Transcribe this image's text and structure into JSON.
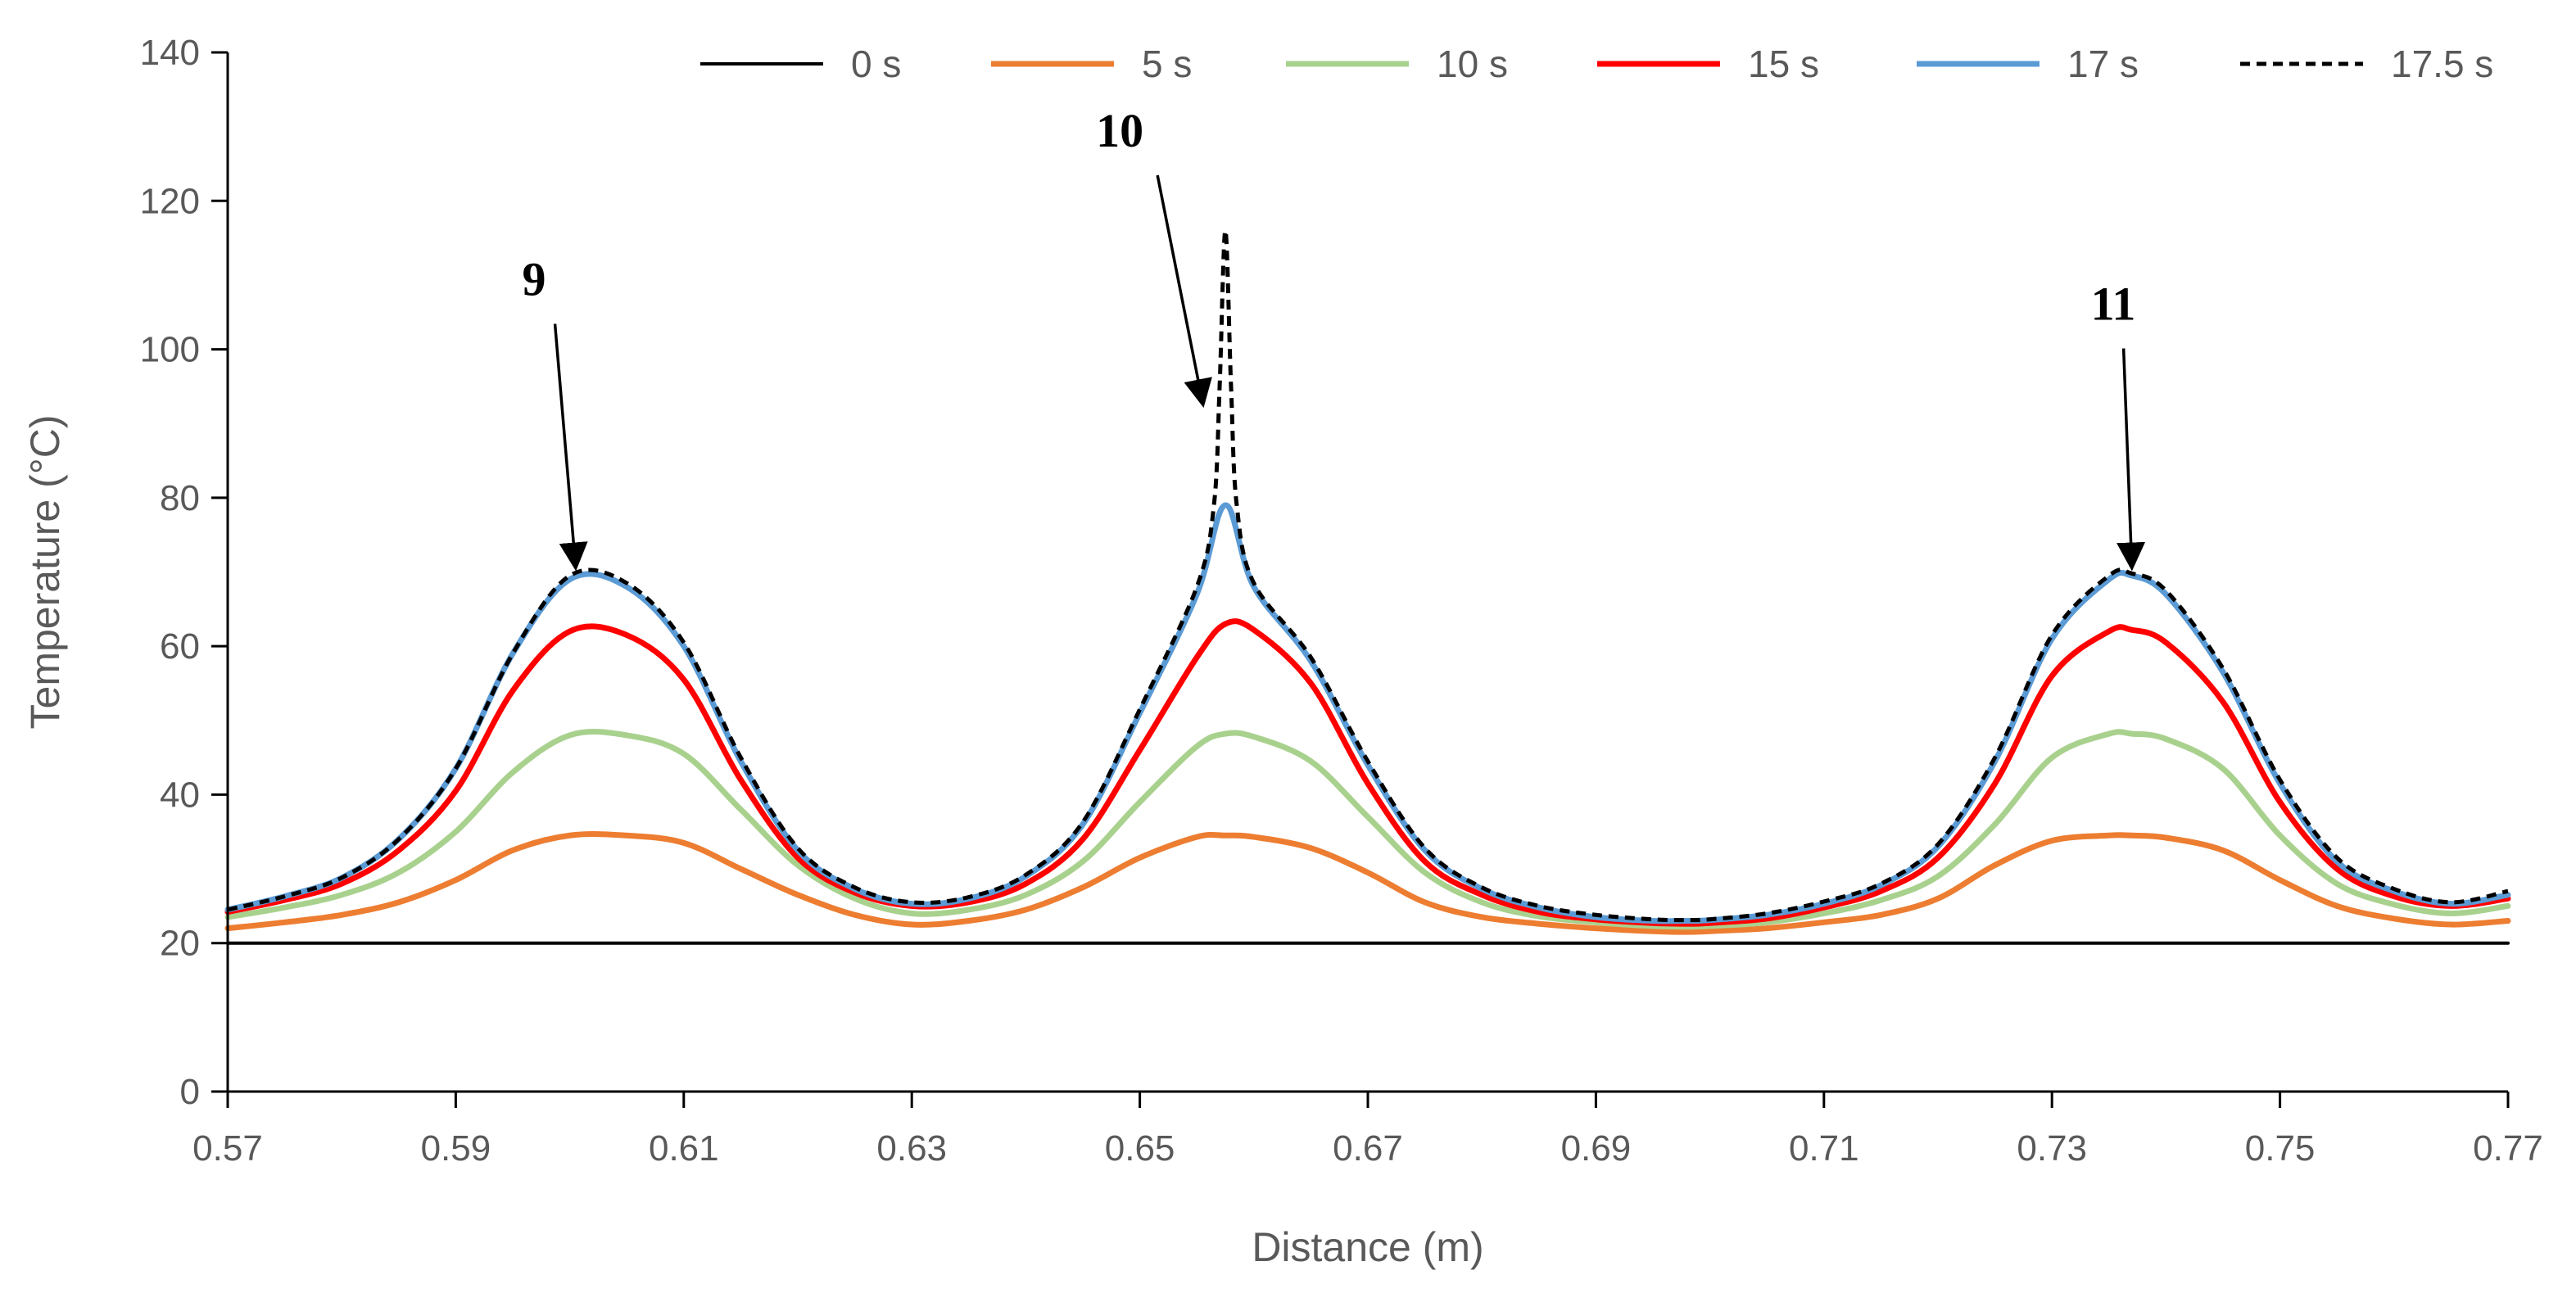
{
  "chart_data": {
    "type": "line",
    "title": "",
    "xlabel": "Distance (m)",
    "ylabel": "Temperature (°C)",
    "xlim": [
      0.57,
      0.77
    ],
    "ylim": [
      0,
      140
    ],
    "x_ticks": [
      0.57,
      0.59,
      0.61,
      0.63,
      0.65,
      0.67,
      0.69,
      0.71,
      0.73,
      0.75,
      0.77
    ],
    "x_tick_labels": [
      "0.57",
      "0.59",
      "0.61",
      "0.63",
      "0.65",
      "0.67",
      "0.69",
      "0.71",
      "0.73",
      "0.75",
      "0.77"
    ],
    "y_ticks": [
      0,
      20,
      40,
      60,
      80,
      100,
      120,
      140
    ],
    "y_tick_labels": [
      "0",
      "20",
      "40",
      "60",
      "80",
      "100",
      "120",
      "140"
    ],
    "grid": false,
    "legend_position": "top",
    "series": [
      {
        "name": "0 s",
        "color": "#000000",
        "dashed": false,
        "x": [
          0.57,
          0.77
        ],
        "y": [
          20,
          20
        ]
      },
      {
        "name": "5 s",
        "color": "#ED7D31",
        "dashed": false,
        "x": [
          0.57,
          0.575,
          0.58,
          0.585,
          0.59,
          0.595,
          0.6,
          0.605,
          0.61,
          0.615,
          0.62,
          0.625,
          0.63,
          0.635,
          0.64,
          0.645,
          0.65,
          0.655,
          0.6575,
          0.66,
          0.665,
          0.67,
          0.675,
          0.68,
          0.685,
          0.69,
          0.695,
          0.698,
          0.7,
          0.705,
          0.71,
          0.715,
          0.72,
          0.725,
          0.73,
          0.735,
          0.737,
          0.74,
          0.745,
          0.75,
          0.755,
          0.76,
          0.765,
          0.77
        ],
        "y": [
          22,
          22.8,
          23.8,
          25.5,
          28.5,
          32.5,
          34.5,
          34.5,
          33.5,
          30,
          26.5,
          23.8,
          22.5,
          23,
          24.5,
          27.5,
          31.5,
          34.3,
          34.5,
          34.3,
          32.8,
          29.5,
          25.5,
          23.5,
          22.6,
          22,
          21.6,
          21.5,
          21.6,
          22,
          22.8,
          23.8,
          26,
          30.5,
          33.8,
          34.5,
          34.5,
          34.2,
          32.5,
          28.5,
          25,
          23.3,
          22.5,
          23
        ]
      },
      {
        "name": "10 s",
        "color": "#A9D18E",
        "dashed": false,
        "x": [
          0.57,
          0.575,
          0.58,
          0.585,
          0.59,
          0.595,
          0.6,
          0.605,
          0.61,
          0.615,
          0.62,
          0.625,
          0.63,
          0.635,
          0.64,
          0.645,
          0.65,
          0.655,
          0.6575,
          0.66,
          0.665,
          0.67,
          0.675,
          0.68,
          0.685,
          0.69,
          0.695,
          0.698,
          0.7,
          0.705,
          0.71,
          0.715,
          0.72,
          0.725,
          0.73,
          0.735,
          0.737,
          0.74,
          0.745,
          0.75,
          0.755,
          0.76,
          0.765,
          0.77
        ],
        "y": [
          23.5,
          24.8,
          26.5,
          29.5,
          35,
          43,
          48,
          48,
          45.5,
          38,
          30.5,
          26,
          24,
          24.5,
          26.5,
          31,
          39,
          46.5,
          48.2,
          47.8,
          44.5,
          37,
          29.5,
          25.5,
          23.6,
          22.8,
          22.3,
          22.2,
          22.3,
          22.8,
          24,
          25.8,
          29,
          36,
          45,
          48.2,
          48.2,
          47.5,
          43.5,
          34.5,
          28,
          25.2,
          24,
          25
        ]
      },
      {
        "name": "15 s",
        "color": "#FF0000",
        "dashed": false,
        "x": [
          0.57,
          0.575,
          0.58,
          0.585,
          0.59,
          0.595,
          0.6,
          0.605,
          0.61,
          0.615,
          0.62,
          0.625,
          0.63,
          0.635,
          0.64,
          0.645,
          0.65,
          0.655,
          0.6575,
          0.66,
          0.665,
          0.67,
          0.675,
          0.68,
          0.685,
          0.69,
          0.695,
          0.698,
          0.7,
          0.705,
          0.71,
          0.715,
          0.72,
          0.725,
          0.73,
          0.735,
          0.737,
          0.74,
          0.745,
          0.75,
          0.755,
          0.76,
          0.765,
          0.77
        ],
        "y": [
          24.2,
          25.8,
          28,
          32.5,
          40.5,
          54,
          62,
          61.5,
          55.5,
          42,
          31.5,
          26.8,
          25,
          25.5,
          28,
          34,
          46,
          58.5,
          63,
          62.2,
          55,
          41.5,
          31,
          26.5,
          24.2,
          23.2,
          22.7,
          22.6,
          22.7,
          23.3,
          24.8,
          27,
          31.5,
          41.5,
          56,
          62,
          62.2,
          60.5,
          52.5,
          39,
          30,
          26.3,
          25,
          26
        ]
      },
      {
        "name": "17 s",
        "color": "#5B9BD5",
        "dashed": false,
        "x": [
          0.57,
          0.575,
          0.58,
          0.585,
          0.59,
          0.595,
          0.6,
          0.605,
          0.61,
          0.615,
          0.62,
          0.625,
          0.63,
          0.635,
          0.64,
          0.645,
          0.65,
          0.655,
          0.6575,
          0.66,
          0.665,
          0.67,
          0.675,
          0.68,
          0.685,
          0.69,
          0.695,
          0.698,
          0.7,
          0.705,
          0.71,
          0.715,
          0.72,
          0.725,
          0.73,
          0.735,
          0.737,
          0.74,
          0.745,
          0.75,
          0.755,
          0.76,
          0.765,
          0.77
        ],
        "y": [
          24.5,
          26.3,
          28.8,
          34,
          43.5,
          59,
          69,
          68,
          60,
          44.5,
          32.5,
          27.3,
          25.3,
          26,
          29,
          36,
          51,
          67,
          79,
          68,
          58,
          44,
          32.5,
          27.3,
          24.8,
          23.5,
          23,
          23,
          23.1,
          23.8,
          25.3,
          27.8,
          33,
          44.5,
          61,
          69,
          69.5,
          67,
          56.5,
          41.5,
          31,
          27,
          25.3,
          26.5
        ]
      },
      {
        "name": "17.5 s",
        "color": "#000000",
        "dashed": true,
        "x": [
          0.57,
          0.575,
          0.58,
          0.585,
          0.59,
          0.595,
          0.6,
          0.605,
          0.61,
          0.615,
          0.62,
          0.625,
          0.63,
          0.635,
          0.64,
          0.645,
          0.65,
          0.655,
          0.6565,
          0.657,
          0.6575,
          0.658,
          0.6585,
          0.66,
          0.665,
          0.67,
          0.675,
          0.68,
          0.685,
          0.69,
          0.695,
          0.698,
          0.7,
          0.705,
          0.71,
          0.715,
          0.72,
          0.725,
          0.73,
          0.735,
          0.737,
          0.74,
          0.745,
          0.75,
          0.755,
          0.76,
          0.765,
          0.77
        ],
        "y": [
          24.5,
          26.3,
          28.8,
          34,
          43.5,
          59,
          69.5,
          68.5,
          60.5,
          45,
          32.8,
          27.5,
          25.5,
          26.2,
          29.2,
          36.3,
          51.5,
          68,
          79,
          95,
          116,
          95,
          79,
          68.5,
          58.5,
          44.5,
          32.8,
          27.5,
          25,
          23.8,
          23.2,
          23.1,
          23.2,
          24,
          25.6,
          28,
          33.3,
          45,
          61.5,
          69.5,
          69.8,
          67.5,
          57,
          42,
          31.5,
          27.3,
          25.5,
          27
        ]
      }
    ],
    "annotations": [
      {
        "text": "9",
        "x": 0.6005,
        "y": 70
      },
      {
        "text": "10",
        "x": 0.6555,
        "y": 92
      },
      {
        "text": "11",
        "x": 0.737,
        "y": 70
      }
    ]
  }
}
